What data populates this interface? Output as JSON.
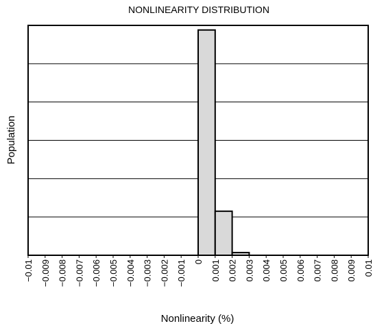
{
  "chart_data": {
    "type": "bar",
    "title": "NONLINEARITY DISTRIBUTION",
    "xlabel": "Nonlinearity (%)",
    "ylabel": "Population",
    "xlim": [
      -0.01,
      0.01
    ],
    "ylim": [
      0,
      6
    ],
    "grid": true,
    "x_ticks": [
      -0.01,
      -0.009,
      -0.008,
      -0.007,
      -0.006,
      -0.005,
      -0.004,
      -0.003,
      -0.002,
      -0.001,
      0,
      0.001,
      0.002,
      0.003,
      0.004,
      0.005,
      0.006,
      0.007,
      0.008,
      0.009,
      0.01
    ],
    "x_tick_labels": [
      "−0.01",
      "−0.009",
      "−0.008",
      "−0.007",
      "−0.006",
      "−0.005",
      "−0.004",
      "−0.003",
      "−0.002",
      "−0.001",
      "0",
      "0.001",
      "0.002",
      "0.003",
      "0.004",
      "0.005",
      "0.006",
      "0.007",
      "0.008",
      "0.009",
      "0.01"
    ],
    "y_ticks": [
      0,
      1,
      2,
      3,
      4,
      5,
      6
    ],
    "bins": [
      {
        "x0": 0,
        "x1": 0.001,
        "value": 5.88
      },
      {
        "x0": 0.001,
        "x1": 0.002,
        "value": 1.15
      },
      {
        "x0": 0.002,
        "x1": 0.003,
        "value": 0.07
      }
    ]
  }
}
